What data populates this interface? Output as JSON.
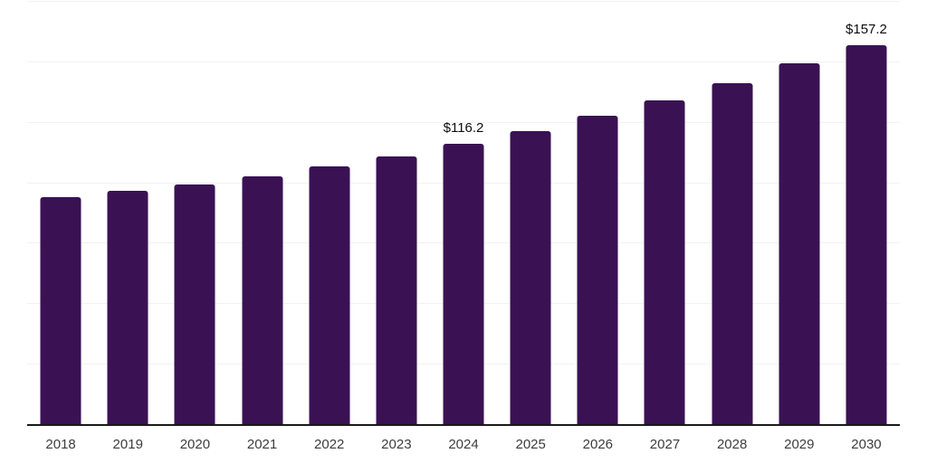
{
  "chart_data": {
    "type": "bar",
    "title": "",
    "xlabel": "",
    "ylabel": "",
    "categories": [
      "2018",
      "2019",
      "2020",
      "2021",
      "2022",
      "2023",
      "2024",
      "2025",
      "2026",
      "2027",
      "2028",
      "2029",
      "2030"
    ],
    "values": [
      94.4,
      96.7,
      99.6,
      103.0,
      106.8,
      111.2,
      116.2,
      121.4,
      127.9,
      134.4,
      141.5,
      149.6,
      157.2
    ],
    "annotations": [
      {
        "category": "2024",
        "text": "$116.2"
      },
      {
        "category": "2030",
        "text": "$157.2"
      }
    ],
    "ylim": [
      0,
      175
    ],
    "gridline_step": 25,
    "grid": "horizontal",
    "y_tick_labels_visible": false,
    "legend": "none",
    "colors": {
      "bar": "#3a1254",
      "gridline": "#f2f2f4",
      "axis_line": "#1a1a1a",
      "tick_label": "#3d3d3d",
      "data_label": "#0d0d0d",
      "background": "#ffffff"
    }
  }
}
